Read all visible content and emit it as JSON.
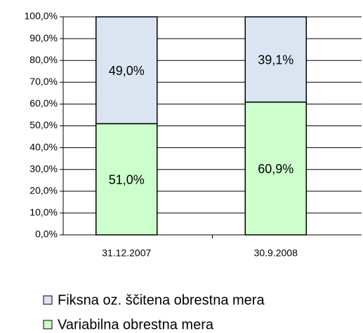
{
  "chart_data": {
    "type": "stacked_bar",
    "categories": [
      "31.12.2007",
      "30.9.2008"
    ],
    "series": [
      {
        "name": "Fiksna oz. ščitena obrestna mera",
        "color": "#dbe5f1",
        "values": [
          49.0,
          39.1
        ],
        "value_labels": [
          "49,0%",
          "39,1%"
        ]
      },
      {
        "name": "Variabilna obrestna mera",
        "color": "#ccffcc",
        "values": [
          51.0,
          60.9
        ],
        "value_labels": [
          "51,0%",
          "60,9%"
        ]
      }
    ],
    "ylim": [
      0,
      100
    ],
    "yticks": [
      {
        "value": 0,
        "label": "0,0%"
      },
      {
        "value": 10,
        "label": "10,0%"
      },
      {
        "value": 20,
        "label": "20,0%"
      },
      {
        "value": 30,
        "label": "30,0%"
      },
      {
        "value": 40,
        "label": "40,0%"
      },
      {
        "value": 50,
        "label": "50,0%"
      },
      {
        "value": 60,
        "label": "60,0%"
      },
      {
        "value": 70,
        "label": "70,0%"
      },
      {
        "value": 80,
        "label": "80,0%"
      },
      {
        "value": 90,
        "label": "90,0%"
      },
      {
        "value": 100,
        "label": "100,0%"
      }
    ],
    "grid": true,
    "legend": "bottom"
  }
}
